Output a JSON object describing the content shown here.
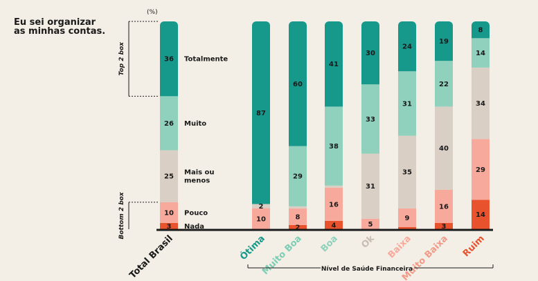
{
  "title": "Eu sei organizar\nas minhas contas.",
  "unit_label": "(%)",
  "brackets": {
    "top": "Top 2 box",
    "bottom": "Bottom 2 box"
  },
  "group_label": "Nível de Saúde Financeira",
  "colors": {
    "Totalmente": "#16998b",
    "Muito": "#8fd1bd",
    "Mais ou menos": "#d9cfc4",
    "Pouco": "#f7aa9c",
    "Nada": "#e8522d"
  },
  "chart_data": {
    "type": "bar",
    "stacked": true,
    "ylim": [
      0,
      100
    ],
    "categories": [
      "Total Brasil",
      "Ótima",
      "Muito Boa",
      "Boa",
      "Ok",
      "Baixa",
      "Muito Baixa",
      "Ruim"
    ],
    "category_colors": [
      "#1a1a1a",
      "#16998b",
      "#7ccdb4",
      "#8fd1bd",
      "#c8bdb2",
      "#f7aa9c",
      "#f29a88",
      "#e8522d"
    ],
    "series": [
      {
        "name": "Nada",
        "values": [
          3,
          0,
          2,
          4,
          0,
          1,
          3,
          14
        ]
      },
      {
        "name": "Pouco",
        "values": [
          10,
          10,
          8,
          16,
          5,
          9,
          16,
          29
        ]
      },
      {
        "name": "Mais ou menos",
        "values": [
          25,
          2,
          1,
          1,
          31,
          35,
          40,
          34
        ]
      },
      {
        "name": "Muito",
        "values": [
          26,
          0,
          29,
          38,
          33,
          31,
          22,
          14
        ]
      },
      {
        "name": "Totalmente",
        "values": [
          36,
          87,
          60,
          41,
          30,
          24,
          19,
          8
        ]
      }
    ],
    "data_labels": [
      [
        "3",
        "",
        "2",
        "4",
        "",
        "",
        "3",
        "14"
      ],
      [
        "10",
        "10",
        "8",
        "16",
        "5",
        "9",
        "16",
        "29"
      ],
      [
        "25",
        "2",
        "",
        "",
        "31",
        "35",
        "40",
        "34"
      ],
      [
        "26",
        "",
        "29",
        "38",
        "33",
        "31",
        "22",
        "14"
      ],
      [
        "36",
        "87",
        "60",
        "41",
        "30",
        "24",
        "19",
        "8"
      ]
    ],
    "segment_labels": [
      "Nada",
      "Pouco",
      "Mais ou\nmenos",
      "Muito",
      "Totalmente"
    ]
  }
}
